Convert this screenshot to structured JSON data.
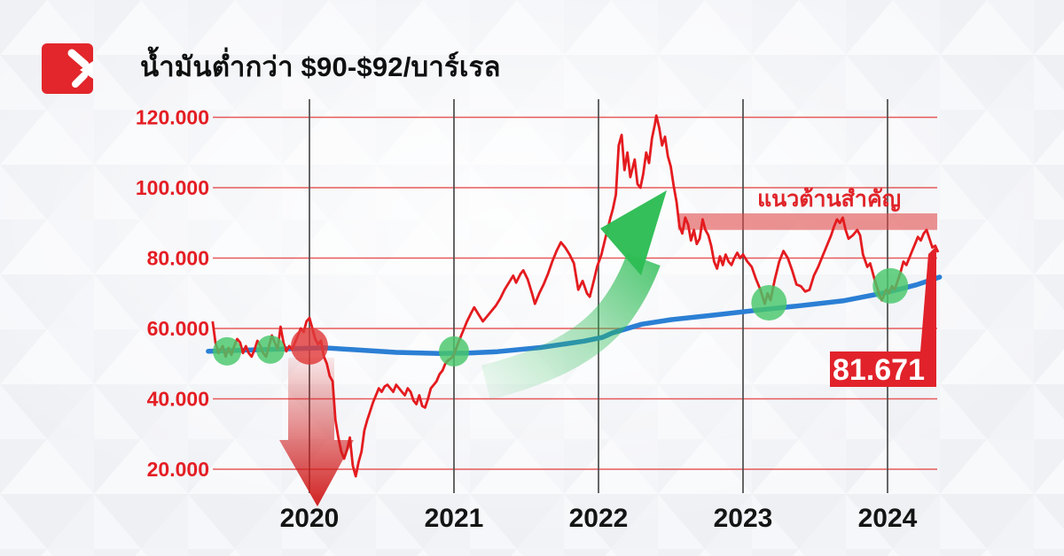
{
  "header": {
    "title": "น้ำมันต่ำกว่า $90-$92/บาร์เรล",
    "logo_icon": "red-square-double-slash-brand-mark",
    "logo_color": "#e2262b"
  },
  "colors": {
    "price_line": "#e41b1f",
    "ma_line": "#2b7fd4",
    "gridline": "#e23333",
    "year_line": "#4d4d4d",
    "y_label": "#e41e24",
    "x_label": "#141414",
    "marker_green": "#48c76a",
    "marker_red": "#e03a3a",
    "resistance_band": "#e04545",
    "resistance_text": "#e0242a",
    "crash_arrow": "#d01c1c",
    "rally_arrow": "#2dbd55",
    "flag_red": "#e1222a",
    "flag_text": "#ffffff"
  },
  "chart_data": {
    "type": "line",
    "title": "น้ำมันต่ำกว่า $90-$92/บาร์เรล",
    "xlabel": "",
    "ylabel": "",
    "x_range": [
      2019.3,
      2024.42
    ],
    "ylim": [
      14,
      126
    ],
    "grid": "horizontal red value lines, vertical dark year lines",
    "legend_position": "none",
    "y_ticks": [
      {
        "value": 120,
        "label": "120.000"
      },
      {
        "value": 100,
        "label": "100.000"
      },
      {
        "value": 80,
        "label": "80.000"
      },
      {
        "value": 60,
        "label": "60.000"
      },
      {
        "value": 40,
        "label": "40.000"
      },
      {
        "value": 20,
        "label": "20.000"
      }
    ],
    "x_ticks": [
      {
        "year": 2020,
        "label": "2020"
      },
      {
        "year": 2021,
        "label": "2021"
      },
      {
        "year": 2022,
        "label": "2022"
      },
      {
        "year": 2023,
        "label": "2023"
      },
      {
        "year": 2024,
        "label": "2024"
      }
    ],
    "series": [
      {
        "name": "oil-price-weekly",
        "points": [
          [
            2019.33,
            62
          ],
          [
            2019.35,
            56
          ],
          [
            2019.37,
            53
          ],
          [
            2019.4,
            55
          ],
          [
            2019.42,
            52
          ],
          [
            2019.44,
            54.5
          ],
          [
            2019.46,
            52.5
          ],
          [
            2019.48,
            55
          ],
          [
            2019.5,
            57
          ],
          [
            2019.52,
            56
          ],
          [
            2019.54,
            53
          ],
          [
            2019.56,
            55
          ],
          [
            2019.58,
            53
          ],
          [
            2019.6,
            52
          ],
          [
            2019.62,
            54
          ],
          [
            2019.64,
            56.5
          ],
          [
            2019.66,
            55
          ],
          [
            2019.68,
            53
          ],
          [
            2019.7,
            52
          ],
          [
            2019.72,
            55
          ],
          [
            2019.74,
            58
          ],
          [
            2019.76,
            56
          ],
          [
            2019.78,
            54
          ],
          [
            2019.8,
            60.5
          ],
          [
            2019.82,
            56
          ],
          [
            2019.84,
            53.5
          ],
          [
            2019.86,
            55
          ],
          [
            2019.88,
            54
          ],
          [
            2019.9,
            56
          ],
          [
            2019.92,
            58
          ],
          [
            2019.94,
            60
          ],
          [
            2019.96,
            59
          ],
          [
            2019.98,
            62
          ],
          [
            2020.0,
            63
          ],
          [
            2020.02,
            60
          ],
          [
            2020.04,
            57
          ],
          [
            2020.06,
            55.5
          ],
          [
            2020.08,
            56.5
          ],
          [
            2020.1,
            52
          ],
          [
            2020.12,
            50
          ],
          [
            2020.14,
            46.5
          ],
          [
            2020.16,
            45
          ],
          [
            2020.18,
            34
          ],
          [
            2020.2,
            29
          ],
          [
            2020.22,
            25
          ],
          [
            2020.24,
            23
          ],
          [
            2020.26,
            25.5
          ],
          [
            2020.28,
            29
          ],
          [
            2020.3,
            21
          ],
          [
            2020.32,
            18
          ],
          [
            2020.34,
            22
          ],
          [
            2020.36,
            25
          ],
          [
            2020.38,
            31
          ],
          [
            2020.4,
            34
          ],
          [
            2020.42,
            36.5
          ],
          [
            2020.44,
            39
          ],
          [
            2020.46,
            41
          ],
          [
            2020.48,
            43
          ],
          [
            2020.5,
            42
          ],
          [
            2020.52,
            43.5
          ],
          [
            2020.54,
            44
          ],
          [
            2020.56,
            43
          ],
          [
            2020.58,
            42
          ],
          [
            2020.6,
            44
          ],
          [
            2020.62,
            43
          ],
          [
            2020.64,
            42
          ],
          [
            2020.66,
            41
          ],
          [
            2020.68,
            43
          ],
          [
            2020.7,
            42
          ],
          [
            2020.72,
            39.5
          ],
          [
            2020.74,
            38.5
          ],
          [
            2020.76,
            41
          ],
          [
            2020.78,
            38
          ],
          [
            2020.8,
            37.5
          ],
          [
            2020.82,
            40
          ],
          [
            2020.84,
            43
          ],
          [
            2020.86,
            44
          ],
          [
            2020.88,
            45
          ],
          [
            2020.9,
            47
          ],
          [
            2020.92,
            48
          ],
          [
            2020.94,
            50
          ],
          [
            2020.96,
            51
          ],
          [
            2020.98,
            51.5
          ],
          [
            2021.0,
            52.5
          ],
          [
            2021.03,
            56
          ],
          [
            2021.06,
            59
          ],
          [
            2021.09,
            62
          ],
          [
            2021.12,
            64.5
          ],
          [
            2021.14,
            66
          ],
          [
            2021.17,
            64
          ],
          [
            2021.2,
            62
          ],
          [
            2021.23,
            63.5
          ],
          [
            2021.26,
            65
          ],
          [
            2021.29,
            66.5
          ],
          [
            2021.32,
            68.5
          ],
          [
            2021.35,
            71
          ],
          [
            2021.38,
            73
          ],
          [
            2021.41,
            75
          ],
          [
            2021.43,
            73
          ],
          [
            2021.46,
            75.5
          ],
          [
            2021.48,
            76.5
          ],
          [
            2021.51,
            74
          ],
          [
            2021.54,
            70
          ],
          [
            2021.56,
            67
          ],
          [
            2021.59,
            70
          ],
          [
            2021.62,
            72.5
          ],
          [
            2021.65,
            75.5
          ],
          [
            2021.68,
            79
          ],
          [
            2021.71,
            82
          ],
          [
            2021.74,
            84.5
          ],
          [
            2021.77,
            83
          ],
          [
            2021.8,
            81
          ],
          [
            2021.83,
            78.5
          ],
          [
            2021.86,
            71
          ],
          [
            2021.89,
            73.5
          ],
          [
            2021.92,
            70
          ],
          [
            2021.94,
            69
          ],
          [
            2021.97,
            74
          ],
          [
            2021.99,
            77.5
          ],
          [
            2022.02,
            81
          ],
          [
            2022.05,
            86
          ],
          [
            2022.08,
            91
          ],
          [
            2022.1,
            94
          ],
          [
            2022.12,
            98
          ],
          [
            2022.14,
            112
          ],
          [
            2022.16,
            115
          ],
          [
            2022.18,
            105
          ],
          [
            2022.2,
            110
          ],
          [
            2022.22,
            103
          ],
          [
            2022.25,
            108
          ],
          [
            2022.27,
            101
          ],
          [
            2022.29,
            100
          ],
          [
            2022.31,
            104
          ],
          [
            2022.33,
            110
          ],
          [
            2022.35,
            107
          ],
          [
            2022.37,
            114
          ],
          [
            2022.39,
            118
          ],
          [
            2022.4,
            120.5
          ],
          [
            2022.42,
            117
          ],
          [
            2022.44,
            112
          ],
          [
            2022.46,
            114.5
          ],
          [
            2022.48,
            109
          ],
          [
            2022.5,
            106
          ],
          [
            2022.52,
            100.5
          ],
          [
            2022.54,
            96
          ],
          [
            2022.56,
            89
          ],
          [
            2022.58,
            87
          ],
          [
            2022.6,
            91.5
          ],
          [
            2022.62,
            89.5
          ],
          [
            2022.64,
            85
          ],
          [
            2022.66,
            88
          ],
          [
            2022.68,
            84
          ],
          [
            2022.7,
            85.5
          ],
          [
            2022.72,
            91
          ],
          [
            2022.74,
            88
          ],
          [
            2022.76,
            86.5
          ],
          [
            2022.78,
            83.5
          ],
          [
            2022.8,
            79
          ],
          [
            2022.82,
            77
          ],
          [
            2022.84,
            80.5
          ],
          [
            2022.86,
            78
          ],
          [
            2022.88,
            81
          ],
          [
            2022.9,
            79
          ],
          [
            2022.92,
            78
          ],
          [
            2022.94,
            80
          ],
          [
            2022.96,
            81.5
          ],
          [
            2022.98,
            80
          ],
          [
            2023.0,
            81
          ],
          [
            2023.03,
            79
          ],
          [
            2023.06,
            77.5
          ],
          [
            2023.09,
            74
          ],
          [
            2023.12,
            71
          ],
          [
            2023.15,
            67
          ],
          [
            2023.17,
            70
          ],
          [
            2023.19,
            68
          ],
          [
            2023.22,
            74
          ],
          [
            2023.25,
            79
          ],
          [
            2023.28,
            82
          ],
          [
            2023.31,
            80
          ],
          [
            2023.34,
            76.5
          ],
          [
            2023.37,
            72.5
          ],
          [
            2023.4,
            72
          ],
          [
            2023.43,
            70.5
          ],
          [
            2023.46,
            71
          ],
          [
            2023.49,
            75
          ],
          [
            2023.52,
            77.5
          ],
          [
            2023.55,
            80.5
          ],
          [
            2023.58,
            83.5
          ],
          [
            2023.61,
            86.5
          ],
          [
            2023.63,
            89
          ],
          [
            2023.65,
            91
          ],
          [
            2023.67,
            90
          ],
          [
            2023.69,
            91.5
          ],
          [
            2023.71,
            88
          ],
          [
            2023.73,
            85.5
          ],
          [
            2023.76,
            86.5
          ],
          [
            2023.79,
            88
          ],
          [
            2023.81,
            86.5
          ],
          [
            2023.83,
            81
          ],
          [
            2023.86,
            77.5
          ],
          [
            2023.88,
            78.5
          ],
          [
            2023.91,
            74
          ],
          [
            2023.94,
            70
          ],
          [
            2023.96,
            68
          ],
          [
            2023.99,
            71
          ],
          [
            2024.01,
            70
          ],
          [
            2024.03,
            72
          ],
          [
            2024.05,
            71
          ],
          [
            2024.07,
            73.5
          ],
          [
            2024.09,
            76
          ],
          [
            2024.11,
            79
          ],
          [
            2024.13,
            78
          ],
          [
            2024.15,
            80
          ],
          [
            2024.17,
            82
          ],
          [
            2024.19,
            84
          ],
          [
            2024.21,
            86
          ],
          [
            2024.23,
            85
          ],
          [
            2024.25,
            87
          ],
          [
            2024.27,
            88
          ],
          [
            2024.29,
            85.5
          ],
          [
            2024.31,
            83
          ],
          [
            2024.33,
            83.5
          ],
          [
            2024.35,
            81.671
          ]
        ]
      },
      {
        "name": "long-term-moving-average",
        "points": [
          [
            2019.3,
            53.5
          ],
          [
            2019.6,
            53.9
          ],
          [
            2019.9,
            54.3
          ],
          [
            2020.1,
            54.5
          ],
          [
            2020.3,
            54.0
          ],
          [
            2020.6,
            53.2
          ],
          [
            2020.9,
            52.9
          ],
          [
            2021.1,
            53.0
          ],
          [
            2021.3,
            53.4
          ],
          [
            2021.6,
            54.6
          ],
          [
            2021.9,
            56.4
          ],
          [
            2022.03,
            57.5
          ],
          [
            2022.1,
            58.8
          ],
          [
            2022.3,
            61.2
          ],
          [
            2022.5,
            62.5
          ],
          [
            2022.8,
            63.8
          ],
          [
            2023.1,
            65.2
          ],
          [
            2023.4,
            66.5
          ],
          [
            2023.7,
            67.9
          ],
          [
            2024.0,
            70.3
          ],
          [
            2024.2,
            72.4
          ],
          [
            2024.36,
            74.6
          ]
        ]
      }
    ],
    "last_price_label": "81.671",
    "resistance": {
      "label": "แนวต้านสำคัญ",
      "zone_values": [
        88,
        92.7
      ],
      "x_start": 2022.55,
      "x_end": 2024.35
    },
    "markers": [
      {
        "kind": "support-touch",
        "color": "green",
        "x": 2019.43,
        "value": 53.5,
        "r": 16
      },
      {
        "kind": "support-touch",
        "color": "green",
        "x": 2019.73,
        "value": 54.0,
        "r": 16
      },
      {
        "kind": "breakdown",
        "color": "red",
        "x": 2020.0,
        "value": 55.0,
        "r": 21
      },
      {
        "kind": "support-touch",
        "color": "green",
        "x": 2021.0,
        "value": 53.5,
        "r": 17
      },
      {
        "kind": "support-touch",
        "color": "green",
        "x": 2023.18,
        "value": 67.3,
        "r": 20
      },
      {
        "kind": "support-touch",
        "color": "green",
        "x": 2024.02,
        "value": 72.1,
        "r": 20
      }
    ],
    "annotations": [
      {
        "id": "crash-arrow",
        "shape": "down-arrow",
        "meaning": "2020 price collapse",
        "x": 2020.03,
        "from_value": 51,
        "to_value": 10.5
      },
      {
        "id": "rally-arrow",
        "shape": "curved-up-arrow",
        "meaning": "2021-2022 rally",
        "from": [
          2021.22,
          45
        ],
        "to": [
          2022.45,
          99
        ]
      },
      {
        "id": "last-price-flag",
        "shape": "drop-flag",
        "meaning": "latest price",
        "label": "81.671"
      }
    ]
  }
}
